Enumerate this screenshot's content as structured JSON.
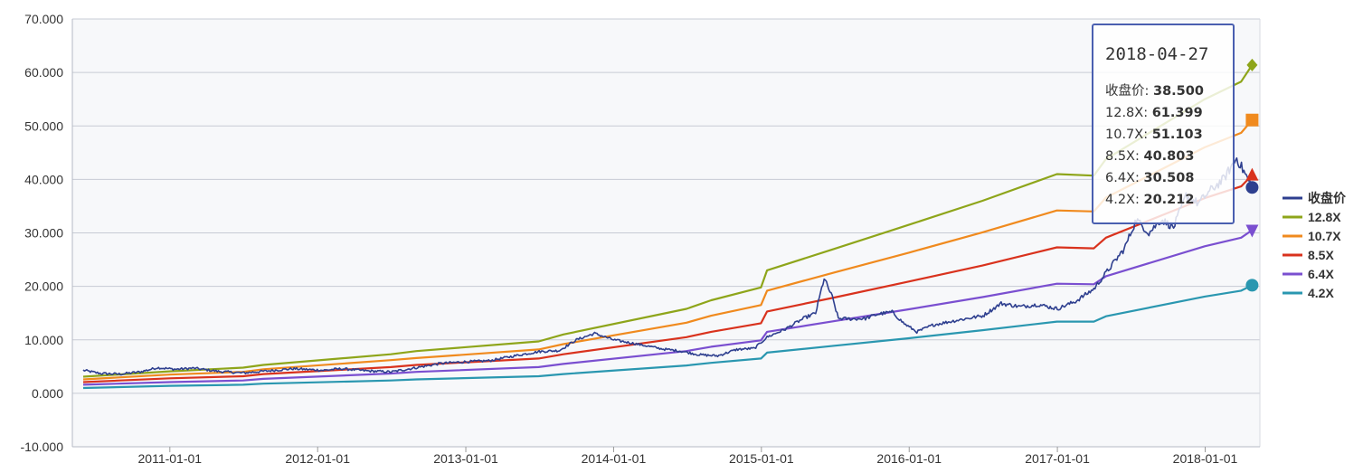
{
  "chart_data": {
    "type": "line",
    "y_axis": {
      "min": -10,
      "max": 70,
      "step": 10,
      "tick_labels": [
        "-10.000",
        "0.000",
        "10.000",
        "20.000",
        "30.000",
        "40.000",
        "50.000",
        "60.000",
        "70.000"
      ]
    },
    "x_axis": {
      "min": "2010-06-01",
      "max": "2018-05-05",
      "tick_labels": [
        "2011-01-01",
        "2012-01-01",
        "2013-01-01",
        "2014-01-01",
        "2015-01-01",
        "2016-01-01",
        "2017-01-01",
        "2018-01-01"
      ]
    },
    "grid": "horizontal",
    "legend_position": "right",
    "series": [
      {
        "name": "收盘价",
        "color": "#2e3f8f",
        "marker": "circle",
        "points": [
          [
            "2010-06-01",
            4.3
          ],
          [
            "2010-07-15",
            3.7
          ],
          [
            "2010-09-01",
            3.6
          ],
          [
            "2010-10-20",
            4.0
          ],
          [
            "2010-12-01",
            4.8
          ],
          [
            "2011-01-15",
            4.5
          ],
          [
            "2011-03-01",
            4.7
          ],
          [
            "2011-05-01",
            4.1
          ],
          [
            "2011-07-01",
            3.8
          ],
          [
            "2011-09-01",
            4.2
          ],
          [
            "2011-11-01",
            4.6
          ],
          [
            "2012-01-15",
            4.3
          ],
          [
            "2012-03-01",
            4.6
          ],
          [
            "2012-05-01",
            4.2
          ],
          [
            "2012-07-01",
            4.0
          ],
          [
            "2012-09-01",
            4.8
          ],
          [
            "2012-11-01",
            5.6
          ],
          [
            "2013-01-01",
            5.9
          ],
          [
            "2013-03-01",
            6.1
          ],
          [
            "2013-05-01",
            7.0
          ],
          [
            "2013-07-01",
            7.8
          ],
          [
            "2013-08-20",
            8.0
          ],
          [
            "2013-10-01",
            10.0
          ],
          [
            "2013-11-15",
            11.2
          ],
          [
            "2014-01-01",
            10.0
          ],
          [
            "2014-03-01",
            9.2
          ],
          [
            "2014-05-01",
            8.3
          ],
          [
            "2014-06-15",
            7.9
          ],
          [
            "2014-08-01",
            7.2
          ],
          [
            "2014-09-15",
            7.0
          ],
          [
            "2014-11-01",
            8.2
          ],
          [
            "2014-12-15",
            8.4
          ],
          [
            "2015-01-15",
            10.5
          ],
          [
            "2015-03-01",
            12.0
          ],
          [
            "2015-04-15",
            14.0
          ],
          [
            "2015-05-15",
            15.0
          ],
          [
            "2015-06-05",
            21.5
          ],
          [
            "2015-06-25",
            18.0
          ],
          [
            "2015-07-10",
            14.0
          ],
          [
            "2015-08-15",
            13.9
          ],
          [
            "2015-09-15",
            14.0
          ],
          [
            "2015-10-15",
            14.8
          ],
          [
            "2015-11-20",
            15.2
          ],
          [
            "2015-12-20",
            13.0
          ],
          [
            "2016-01-20",
            11.5
          ],
          [
            "2016-03-01",
            12.8
          ],
          [
            "2016-05-01",
            13.7
          ],
          [
            "2016-07-01",
            14.5
          ],
          [
            "2016-08-15",
            16.8
          ],
          [
            "2016-10-01",
            16.2
          ],
          [
            "2016-11-15",
            16.6
          ],
          [
            "2017-01-01",
            15.8
          ],
          [
            "2017-02-15",
            17.2
          ],
          [
            "2017-04-01",
            19.5
          ],
          [
            "2017-05-01",
            22.5
          ],
          [
            "2017-06-15",
            27.0
          ],
          [
            "2017-07-15",
            32.5
          ],
          [
            "2017-08-15",
            30.0
          ],
          [
            "2017-09-15",
            32.5
          ],
          [
            "2017-10-15",
            31.0
          ],
          [
            "2017-11-15",
            37.0
          ],
          [
            "2017-12-15",
            35.5
          ],
          [
            "2018-01-15",
            38.0
          ],
          [
            "2018-02-15",
            40.0
          ],
          [
            "2018-03-20",
            44.0
          ],
          [
            "2018-04-27",
            38.5
          ]
        ]
      },
      {
        "name": "12.8X",
        "color": "#8ea51a",
        "marker": "diamond",
        "points": [
          [
            "2010-06-01",
            3.1
          ],
          [
            "2010-12-31",
            4.1
          ],
          [
            "2011-07-01",
            4.8
          ],
          [
            "2011-08-20",
            5.3
          ],
          [
            "2012-06-30",
            7.3
          ],
          [
            "2012-09-01",
            7.9
          ],
          [
            "2013-06-30",
            9.7
          ],
          [
            "2013-08-30",
            11.0
          ],
          [
            "2014-06-30",
            15.8
          ],
          [
            "2014-08-30",
            17.4
          ],
          [
            "2014-12-31",
            19.8
          ],
          [
            "2015-01-15",
            23.0
          ],
          [
            "2015-06-30",
            27.0
          ],
          [
            "2015-12-31",
            31.5
          ],
          [
            "2016-06-30",
            36.0
          ],
          [
            "2016-12-31",
            41.0
          ],
          [
            "2017-04-01",
            40.7
          ],
          [
            "2017-05-01",
            43.8
          ],
          [
            "2017-12-31",
            55.0
          ],
          [
            "2018-03-31",
            58.3
          ],
          [
            "2018-04-27",
            61.399
          ]
        ]
      },
      {
        "name": "10.7X",
        "color": "#f08a1e",
        "marker": "square",
        "points": [
          [
            "2010-06-01",
            2.6
          ],
          [
            "2010-12-31",
            3.5
          ],
          [
            "2011-07-01",
            4.0
          ],
          [
            "2011-08-20",
            4.5
          ],
          [
            "2012-06-30",
            6.2
          ],
          [
            "2012-09-01",
            6.6
          ],
          [
            "2013-06-30",
            8.2
          ],
          [
            "2013-08-30",
            9.2
          ],
          [
            "2014-06-30",
            13.2
          ],
          [
            "2014-08-30",
            14.5
          ],
          [
            "2014-12-31",
            16.5
          ],
          [
            "2015-01-15",
            19.2
          ],
          [
            "2015-06-30",
            22.6
          ],
          [
            "2015-12-31",
            26.3
          ],
          [
            "2016-06-30",
            30.1
          ],
          [
            "2016-12-31",
            34.2
          ],
          [
            "2017-04-01",
            34.0
          ],
          [
            "2017-05-01",
            36.6
          ],
          [
            "2017-12-31",
            46.0
          ],
          [
            "2018-03-31",
            48.7
          ],
          [
            "2018-04-27",
            51.103
          ]
        ]
      },
      {
        "name": "8.5X",
        "color": "#d9321d",
        "marker": "triangle",
        "points": [
          [
            "2010-06-01",
            2.1
          ],
          [
            "2010-12-31",
            2.8
          ],
          [
            "2011-07-01",
            3.2
          ],
          [
            "2011-08-20",
            3.6
          ],
          [
            "2012-06-30",
            4.9
          ],
          [
            "2012-09-01",
            5.3
          ],
          [
            "2013-06-30",
            6.5
          ],
          [
            "2013-08-30",
            7.3
          ],
          [
            "2014-06-30",
            10.5
          ],
          [
            "2014-08-30",
            11.5
          ],
          [
            "2014-12-31",
            13.1
          ],
          [
            "2015-01-15",
            15.3
          ],
          [
            "2015-06-30",
            17.9
          ],
          [
            "2015-12-31",
            20.9
          ],
          [
            "2016-06-30",
            23.9
          ],
          [
            "2016-12-31",
            27.3
          ],
          [
            "2017-04-01",
            27.1
          ],
          [
            "2017-05-01",
            29.1
          ],
          [
            "2017-12-31",
            36.5
          ],
          [
            "2018-03-31",
            38.7
          ],
          [
            "2018-04-27",
            40.803
          ]
        ]
      },
      {
        "name": "6.4X",
        "color": "#7a4fd0",
        "marker": "triangle-down",
        "points": [
          [
            "2010-06-01",
            1.6
          ],
          [
            "2010-12-31",
            2.1
          ],
          [
            "2011-07-01",
            2.4
          ],
          [
            "2011-08-20",
            2.7
          ],
          [
            "2012-06-30",
            3.7
          ],
          [
            "2012-09-01",
            4.0
          ],
          [
            "2013-06-30",
            4.9
          ],
          [
            "2013-08-30",
            5.5
          ],
          [
            "2014-06-30",
            7.9
          ],
          [
            "2014-08-30",
            8.7
          ],
          [
            "2014-12-31",
            9.9
          ],
          [
            "2015-01-15",
            11.5
          ],
          [
            "2015-06-30",
            13.5
          ],
          [
            "2015-12-31",
            15.7
          ],
          [
            "2016-06-30",
            18.0
          ],
          [
            "2016-12-31",
            20.5
          ],
          [
            "2017-04-01",
            20.4
          ],
          [
            "2017-05-01",
            21.9
          ],
          [
            "2017-12-31",
            27.5
          ],
          [
            "2018-03-31",
            29.1
          ],
          [
            "2018-04-27",
            30.508
          ]
        ]
      },
      {
        "name": "4.2X",
        "color": "#2a97b0",
        "marker": "circle",
        "points": [
          [
            "2010-06-01",
            1.0
          ],
          [
            "2010-12-31",
            1.4
          ],
          [
            "2011-07-01",
            1.6
          ],
          [
            "2011-08-20",
            1.8
          ],
          [
            "2012-06-30",
            2.4
          ],
          [
            "2012-09-01",
            2.6
          ],
          [
            "2013-06-30",
            3.2
          ],
          [
            "2013-08-30",
            3.6
          ],
          [
            "2014-06-30",
            5.2
          ],
          [
            "2014-08-30",
            5.7
          ],
          [
            "2014-12-31",
            6.5
          ],
          [
            "2015-01-15",
            7.6
          ],
          [
            "2015-06-30",
            8.9
          ],
          [
            "2015-12-31",
            10.3
          ],
          [
            "2016-06-30",
            11.8
          ],
          [
            "2016-12-31",
            13.4
          ],
          [
            "2017-04-01",
            13.4
          ],
          [
            "2017-05-01",
            14.4
          ],
          [
            "2017-12-31",
            18.1
          ],
          [
            "2018-03-31",
            19.2
          ],
          [
            "2018-04-27",
            20.212
          ]
        ]
      }
    ],
    "tooltip": {
      "date": "2018-04-27",
      "rows": [
        {
          "label": "收盘价",
          "value": "38.500"
        },
        {
          "label": "12.8X",
          "value": "61.399"
        },
        {
          "label": "10.7X",
          "value": "51.103"
        },
        {
          "label": "8.5X",
          "value": "40.803"
        },
        {
          "label": "6.4X",
          "value": "30.508"
        },
        {
          "label": "4.2X",
          "value": "20.212"
        }
      ]
    }
  }
}
